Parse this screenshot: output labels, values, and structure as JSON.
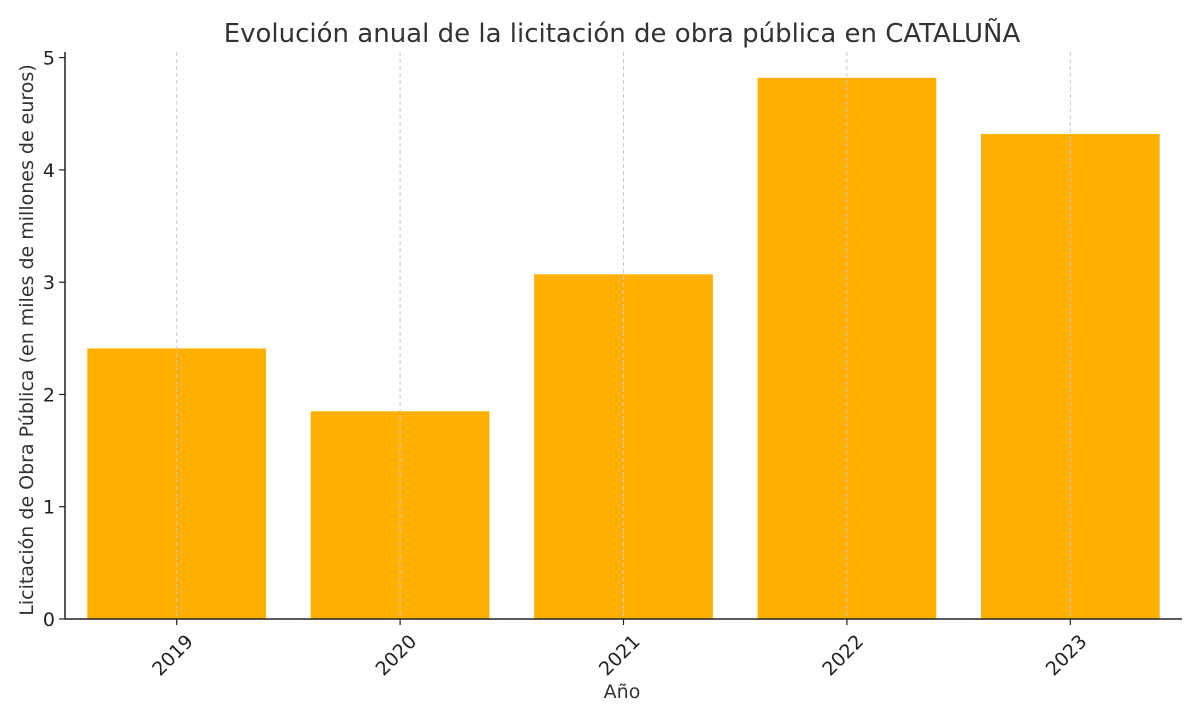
{
  "chart_data": {
    "type": "bar",
    "title": "Evolución anual de la licitación de obra pública en CATALUÑA",
    "xlabel": "Año",
    "ylabel": "Licitación de Obra Pública (en miles de millones de euros)",
    "categories": [
      "2019",
      "2020",
      "2021",
      "2022",
      "2023"
    ],
    "values": [
      2.41,
      1.85,
      3.07,
      4.82,
      4.32
    ],
    "ylim": [
      0,
      5.05
    ],
    "yticks": [
      "0",
      "1",
      "2",
      "3",
      "4",
      "5"
    ],
    "bar_color": "#FFB000",
    "grid": "vertical dashed",
    "x_tick_rotation": "45 degrees"
  }
}
